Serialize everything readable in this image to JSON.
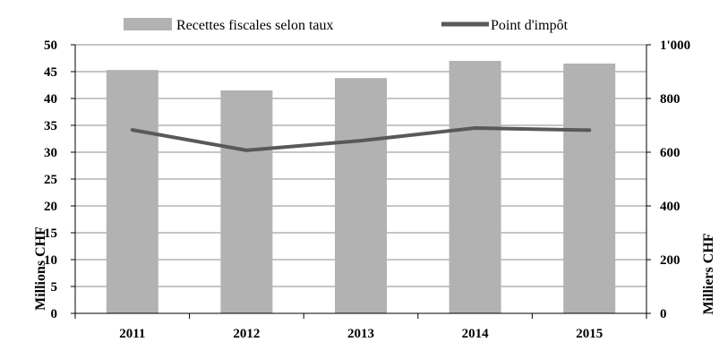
{
  "chart_data": {
    "type": "bar+line",
    "categories": [
      "2011",
      "2012",
      "2013",
      "2014",
      "2015"
    ],
    "series": [
      {
        "name": "Recettes fiscales selon taux",
        "type": "bar",
        "axis": "left",
        "color": "#b2b2b2",
        "values": [
          45.3,
          41.5,
          43.8,
          47.0,
          46.5
        ]
      },
      {
        "name": "Point d'impôt",
        "type": "line",
        "axis": "right",
        "color": "#595959",
        "values": [
          683,
          607,
          643,
          690,
          682
        ]
      }
    ],
    "y_left": {
      "label": "Millions CHF",
      "range": [
        0,
        50
      ],
      "ticks": [
        "0",
        "5",
        "10",
        "15",
        "20",
        "25",
        "30",
        "35",
        "40",
        "45",
        "50"
      ]
    },
    "y_right": {
      "label": "Milliers CHF",
      "range": [
        0,
        1000
      ],
      "ticks": [
        "0",
        "200",
        "400",
        "600",
        "800",
        "1'000"
      ]
    },
    "grid": true,
    "legend_position": "top"
  }
}
